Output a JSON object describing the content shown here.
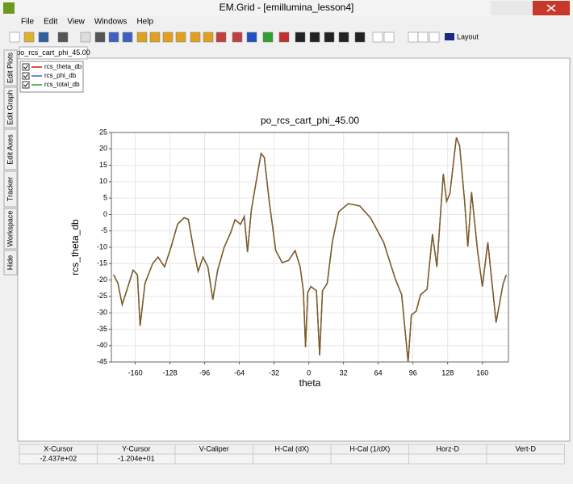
{
  "window": {
    "title": "EM.Grid - [emillumina_lesson4]"
  },
  "menu": [
    "File",
    "Edit",
    "View",
    "Windows",
    "Help"
  ],
  "toolbar": {
    "layout": "Layout"
  },
  "tab": "po_rcs_cart_phi_45.00",
  "side_tabs": [
    "Edit Plots",
    "Edit Graph",
    "Edit Axes",
    "Tracker",
    "Workspace",
    "Hide"
  ],
  "chart_data": {
    "type": "line",
    "title": "po_rcs_cart_phi_45.00",
    "x_label": "theta",
    "y_label": "rcs_theta_db",
    "x": [
      -180,
      -176,
      -172,
      -166,
      -162,
      -158,
      -155.5,
      -151,
      -144,
      -139,
      -133,
      -127,
      -121,
      -115,
      -111,
      -106,
      -102,
      -97.5,
      -93,
      -88.5,
      -84,
      -78,
      -72,
      -68,
      -63,
      -59.5,
      -56.5,
      -53,
      -48,
      -44,
      -41,
      -36.5,
      -30.5,
      -24.5,
      -18.6,
      -12.6,
      -8,
      -5,
      -3,
      -1,
      2,
      7,
      10,
      12.6,
      17,
      21.6,
      27.5,
      36.5,
      47,
      57,
      69,
      79.6,
      85.6,
      91.5,
      94.5,
      99,
      103,
      109,
      114,
      118,
      124,
      127,
      130,
      136,
      139,
      143.6,
      146.6,
      150,
      155.5,
      160,
      165,
      172.6,
      179,
      182
    ],
    "series": [
      {
        "name": "rcs_theta_db",
        "color": "#d81010",
        "values": [
          -18.4,
          -21,
          -27.5,
          -21.3,
          -17,
          -18.4,
          -34,
          -21,
          -15,
          -13,
          -16,
          -10,
          -3,
          -1,
          -1.5,
          -11,
          -17.4,
          -13,
          -16,
          -26,
          -17,
          -10,
          -5.5,
          -1.6,
          -3,
          -0.6,
          -11.5,
          1.3,
          11,
          18.6,
          17.4,
          4,
          -11,
          -14.7,
          -14,
          -11,
          -16,
          -23.3,
          -40.5,
          -23.8,
          -22,
          -23.3,
          -43,
          -23.3,
          -21,
          -8.5,
          0.8,
          3.3,
          2.6,
          -1.1,
          -8.5,
          -19.6,
          -24.5,
          -45,
          -30.7,
          -29.5,
          -24.5,
          -22.8,
          -6,
          -16,
          12.4,
          4,
          6.3,
          23.5,
          21,
          4,
          -9.8,
          6.8,
          -11,
          -22,
          -8.5,
          -33,
          -21.3,
          -18.4
        ]
      },
      {
        "name": "rcs_phi_db",
        "color": "#4060c0",
        "values": [
          -18.4,
          -21,
          -27.5,
          -21.3,
          -17,
          -18.4,
          -34,
          -21,
          -15,
          -13,
          -16,
          -10,
          -3,
          -1,
          -1.5,
          -11,
          -17.4,
          -13,
          -16,
          -26,
          -17,
          -10,
          -5.5,
          -1.6,
          -3,
          -0.6,
          -11.5,
          1.3,
          11,
          18.6,
          17.4,
          4,
          -11,
          -14.7,
          -14,
          -11,
          -16,
          -23.3,
          -40.5,
          -23.8,
          -22,
          -23.3,
          -43,
          -23.3,
          -21,
          -8.5,
          0.8,
          3.3,
          2.6,
          -1.1,
          -8.5,
          -19.6,
          -24.5,
          -45,
          -30.7,
          -29.5,
          -24.5,
          -22.8,
          -6,
          -16,
          12.4,
          4,
          6.3,
          23.5,
          21,
          4,
          -9.8,
          6.8,
          -11,
          -22,
          -8.5,
          -33,
          -21.3,
          -18.4
        ]
      },
      {
        "name": "rcs_total_db",
        "color": "#30a030",
        "values": [
          -18.4,
          -21,
          -27.5,
          -21.3,
          -17,
          -18.4,
          -34,
          -21,
          -15,
          -13,
          -16,
          -10,
          -3,
          -1,
          -1.5,
          -11,
          -17.4,
          -13,
          -16,
          -26,
          -17,
          -10,
          -5.5,
          -1.6,
          -3,
          -0.6,
          -11.5,
          1.3,
          11,
          18.6,
          17.4,
          4,
          -11,
          -14.7,
          -14,
          -11,
          -16,
          -23.3,
          -40.5,
          -23.8,
          -22,
          -23.3,
          -43,
          -23.3,
          -21,
          -8.5,
          0.8,
          3.3,
          2.6,
          -1.1,
          -8.5,
          -19.6,
          -24.5,
          -45,
          -30.7,
          -29.5,
          -24.5,
          -22.8,
          -6,
          -16,
          12.4,
          4,
          6.3,
          23.5,
          21,
          4,
          -9.8,
          6.8,
          -11,
          -22,
          -8.5,
          -33,
          -21.3,
          -18.4
        ]
      }
    ],
    "xlim": [
      -182,
      184
    ],
    "ylim": [
      -45,
      25
    ],
    "xticks": [
      -160,
      -128,
      -96,
      -64,
      -32,
      0,
      32,
      64,
      96,
      128,
      160
    ],
    "yticks": [
      25,
      20,
      15,
      10,
      5,
      0,
      -5,
      -10,
      -15,
      -20,
      -25,
      -30,
      -35,
      -40,
      -45
    ],
    "grid": true
  },
  "status": {
    "headers": [
      "X-Cursor",
      "Y-Cursor",
      "V-Caliper",
      "H-Cal (dX)",
      "H-Cal (1/dX)",
      "Horz-D",
      "Vert-D"
    ],
    "values": [
      "-2.437e+02",
      "-1.204e+01"
    ]
  }
}
